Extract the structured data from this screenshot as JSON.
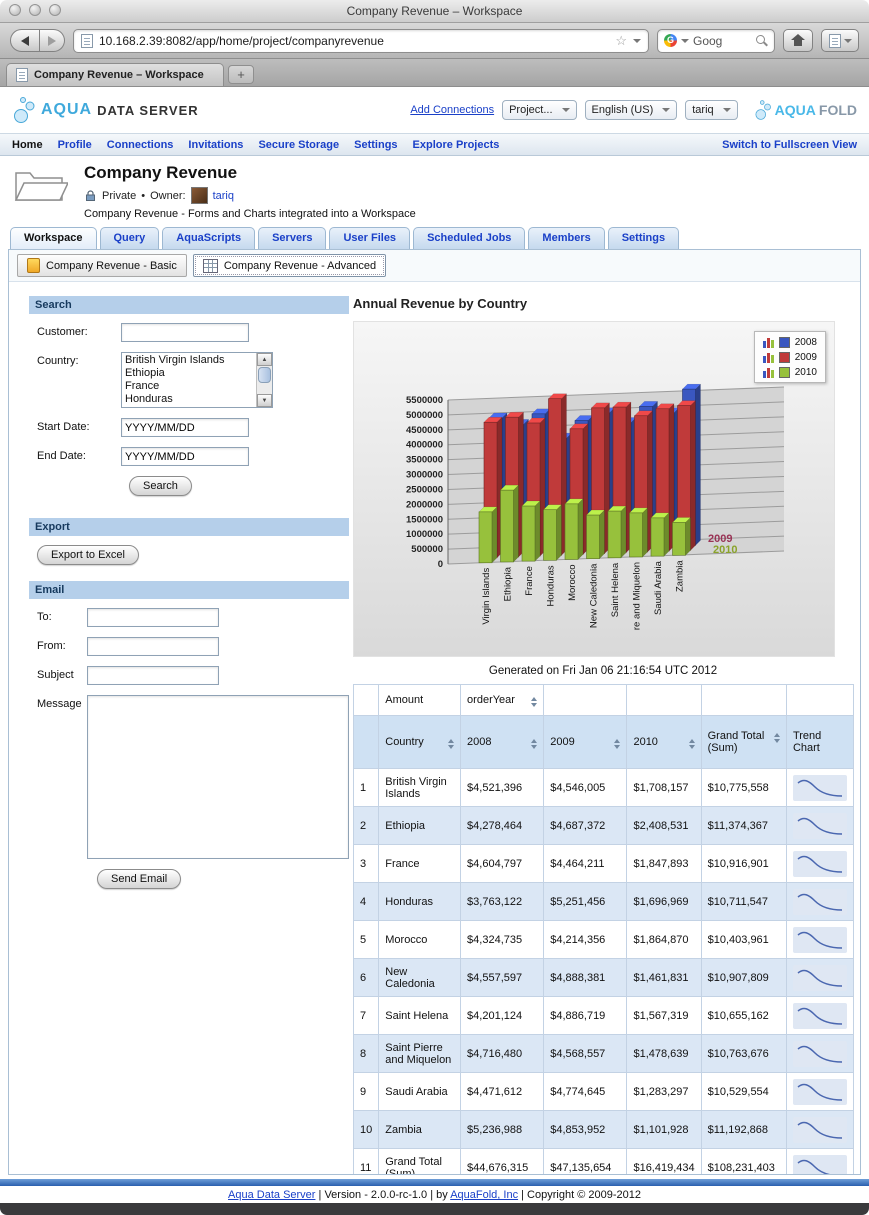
{
  "browser": {
    "window_title": "Company Revenue – Workspace",
    "url": "10.168.2.39:8082/app/home/project/companyrevenue",
    "tab_title": "Company Revenue – Workspace",
    "search_value": "Goog",
    "new_tab_button": "+"
  },
  "header": {
    "logo_aqua": "AQUA",
    "logo_rest": "DATA SERVER",
    "add_connections": "Add Connections",
    "project_dropdown": "Project...",
    "language_dropdown": "English (US)",
    "user_dropdown": "tariq",
    "brand_aqua": "AQUA",
    "brand_fold": "FOLD"
  },
  "nav": {
    "items": [
      {
        "label": "Home",
        "active": true
      },
      {
        "label": "Profile",
        "active": false
      },
      {
        "label": "Connections",
        "active": false
      },
      {
        "label": "Invitations",
        "active": false
      },
      {
        "label": "Secure Storage",
        "active": false
      },
      {
        "label": "Settings",
        "active": false
      },
      {
        "label": "Explore Projects",
        "active": false
      }
    ],
    "fullscreen_link": "Switch to Fullscreen View"
  },
  "project": {
    "title": "Company Revenue",
    "privacy": "Private",
    "separator": "•",
    "owner_label": "Owner:",
    "owner_name": "tariq",
    "description": "Company Revenue - Forms and Charts integrated into a Workspace"
  },
  "tabs": {
    "items": [
      "Workspace",
      "Query",
      "AquaScripts",
      "Servers",
      "User Files",
      "Scheduled Jobs",
      "Members",
      "Settings"
    ],
    "active": "Workspace"
  },
  "subtabs": {
    "items": [
      {
        "label": "Company Revenue - Basic",
        "icon": "form-icon",
        "active": false
      },
      {
        "label": "Company Revenue - Advanced",
        "icon": "table-icon",
        "active": true
      }
    ]
  },
  "search_form": {
    "title": "Search",
    "customer_label": "Customer:",
    "country_label": "Country:",
    "country_options": [
      "British Virgin Islands",
      "Ethiopia",
      "France",
      "Honduras"
    ],
    "start_date_label": "Start Date:",
    "start_date_value": "YYYY/MM/DD",
    "end_date_label": "End Date:",
    "end_date_value": "YYYY/MM/DD",
    "search_button": "Search"
  },
  "export_form": {
    "title": "Export",
    "button": "Export to Excel"
  },
  "email_form": {
    "title": "Email",
    "to_label": "To:",
    "from_label": "From:",
    "subject_label": "Subject",
    "message_label": "Message",
    "send_button": "Send Email"
  },
  "report": {
    "title": "Annual Revenue by Country",
    "generated": "Generated on Fri Jan 06 21:16:54 UTC 2012"
  },
  "chart_data": {
    "type": "bar",
    "style": "3d",
    "title": "Annual Revenue by Country",
    "categories": [
      "Virgin Islands",
      "Ethiopia",
      "France",
      "Honduras",
      "Morocco",
      "New Caledonia",
      "Saint Helena",
      "re and Miquelon",
      "Saudi Arabia",
      "Zambia"
    ],
    "series": [
      {
        "name": "2008",
        "color": "#3a57c0",
        "values": [
          4521396,
          4278464,
          4604797,
          3763122,
          4324735,
          4557597,
          4201124,
          4716480,
          4471612,
          5236988
        ]
      },
      {
        "name": "2009",
        "color": "#c03a3a",
        "values": [
          4546005,
          4687372,
          4464211,
          5251456,
          4214356,
          4888381,
          4886719,
          4568557,
          4774645,
          4853952
        ]
      },
      {
        "name": "2010",
        "color": "#97c13c",
        "values": [
          1708157,
          2408531,
          1847893,
          1696969,
          1864870,
          1461831,
          1567319,
          1478639,
          1283297,
          1101928
        ]
      }
    ],
    "ylim": [
      0,
      5500000
    ],
    "ytick_step": 500000,
    "grid": true,
    "legend_position": "top-right",
    "depth_axis_labels": [
      {
        "label": "2009",
        "color": "#993355"
      },
      {
        "label": "2010",
        "color": "#8aa32a"
      }
    ]
  },
  "table": {
    "pivot_header": {
      "amount_label": "Amount",
      "order_year_label": "orderYear"
    },
    "columns": [
      {
        "label": "Country",
        "sortable": true
      },
      {
        "label": "2008",
        "sortable": true
      },
      {
        "label": "2009",
        "sortable": true
      },
      {
        "label": "2010",
        "sortable": true
      },
      {
        "label": "Grand Total (Sum)",
        "sortable": true
      },
      {
        "label": "Trend Chart",
        "sortable": false
      }
    ],
    "rows": [
      {
        "num": "1",
        "country": "British Virgin Islands",
        "v2008": "$4,521,396",
        "v2009": "$4,546,005",
        "v2010": "$1,708,157",
        "total": "$10,775,558"
      },
      {
        "num": "2",
        "country": "Ethiopia",
        "v2008": "$4,278,464",
        "v2009": "$4,687,372",
        "v2010": "$2,408,531",
        "total": "$11,374,367"
      },
      {
        "num": "3",
        "country": "France",
        "v2008": "$4,604,797",
        "v2009": "$4,464,211",
        "v2010": "$1,847,893",
        "total": "$10,916,901"
      },
      {
        "num": "4",
        "country": "Honduras",
        "v2008": "$3,763,122",
        "v2009": "$5,251,456",
        "v2010": "$1,696,969",
        "total": "$10,711,547"
      },
      {
        "num": "5",
        "country": "Morocco",
        "v2008": "$4,324,735",
        "v2009": "$4,214,356",
        "v2010": "$1,864,870",
        "total": "$10,403,961"
      },
      {
        "num": "6",
        "country": "New Caledonia",
        "v2008": "$4,557,597",
        "v2009": "$4,888,381",
        "v2010": "$1,461,831",
        "total": "$10,907,809"
      },
      {
        "num": "7",
        "country": "Saint Helena",
        "v2008": "$4,201,124",
        "v2009": "$4,886,719",
        "v2010": "$1,567,319",
        "total": "$10,655,162"
      },
      {
        "num": "8",
        "country": "Saint Pierre and Miquelon",
        "v2008": "$4,716,480",
        "v2009": "$4,568,557",
        "v2010": "$1,478,639",
        "total": "$10,763,676"
      },
      {
        "num": "9",
        "country": "Saudi Arabia",
        "v2008": "$4,471,612",
        "v2009": "$4,774,645",
        "v2010": "$1,283,297",
        "total": "$10,529,554"
      },
      {
        "num": "10",
        "country": "Zambia",
        "v2008": "$5,236,988",
        "v2009": "$4,853,952",
        "v2010": "$1,101,928",
        "total": "$11,192,868"
      },
      {
        "num": "11",
        "country": "Grand Total (Sum)",
        "v2008": "$44,676,315",
        "v2009": "$47,135,654",
        "v2010": "$16,419,434",
        "total": "$108,231,403"
      }
    ]
  },
  "footer": {
    "link1": "Aqua Data Server",
    "sep1": "| Version - 2.0.0-rc-1.0 | by",
    "link2": "AquaFold, Inc",
    "sep2": "| Copyright © 2009-2012"
  }
}
